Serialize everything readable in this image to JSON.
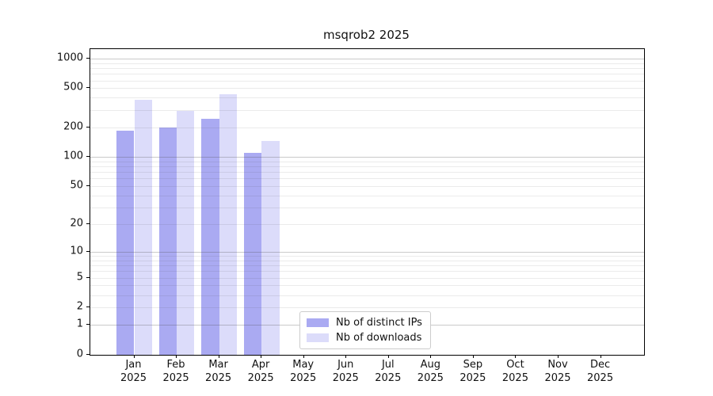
{
  "title": "msqrob2 2025",
  "chart_data": {
    "type": "bar",
    "title": "msqrob2 2025",
    "scale": "log1p",
    "grid": "horizontal",
    "legend_position": "bottom-center",
    "categories": [
      "Jan 2025",
      "Feb 2025",
      "Mar 2025",
      "Apr 2025",
      "May 2025",
      "Jun 2025",
      "Jul 2025",
      "Aug 2025",
      "Sep 2025",
      "Oct 2025",
      "Nov 2025",
      "Dec 2025"
    ],
    "series": [
      {
        "name": "Nb of distinct IPs",
        "color": "#aaaaf2",
        "values": [
          185,
          200,
          245,
          110,
          0,
          0,
          0,
          0,
          0,
          0,
          0,
          0
        ]
      },
      {
        "name": "Nb of downloads",
        "color": "#dcdcfa",
        "values": [
          380,
          295,
          435,
          145,
          0,
          0,
          0,
          0,
          0,
          0,
          0,
          0
        ]
      }
    ],
    "y_ticks": [
      0,
      1,
      2,
      5,
      10,
      20,
      50,
      100,
      200,
      500,
      1000
    ],
    "ylim": [
      0,
      1150
    ],
    "xlabel": "",
    "ylabel": ""
  }
}
